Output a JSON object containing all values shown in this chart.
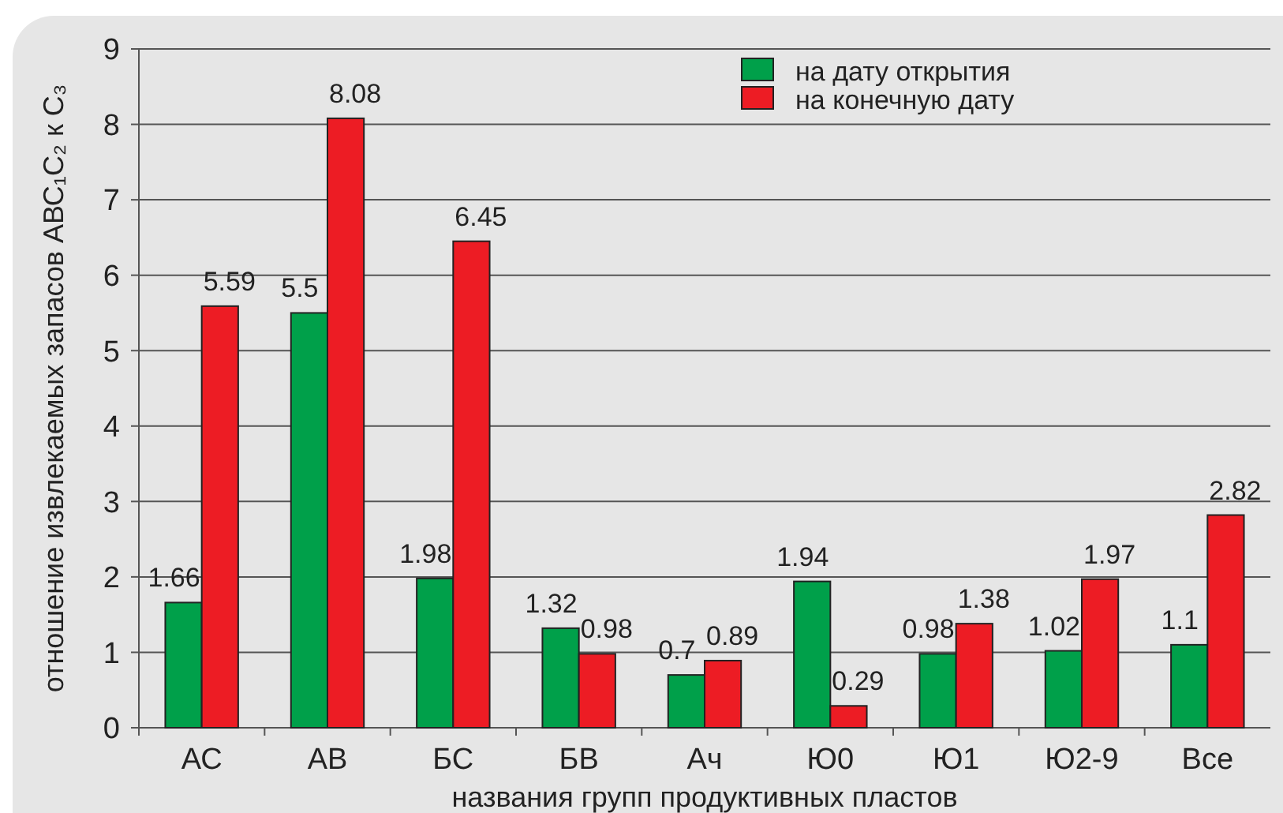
{
  "chart_data": {
    "type": "bar",
    "xlabel": "названия групп продуктивных пластов",
    "ylabel": "отношение извлекаемых запасов АВС₁С₂ к С₃",
    "categories": [
      "АС",
      "АВ",
      "БС",
      "БВ",
      "Ач",
      "Ю0",
      "Ю1",
      "Ю2-9",
      "Все"
    ],
    "series": [
      {
        "name": "на дату открытия",
        "color": "#00a04a",
        "values": [
          1.66,
          5.5,
          1.98,
          1.32,
          0.7,
          1.94,
          0.98,
          1.02,
          1.1
        ]
      },
      {
        "name": "на конечную дату",
        "color": "#ed1c24",
        "values": [
          5.59,
          8.08,
          6.45,
          0.98,
          0.89,
          0.29,
          1.38,
          1.97,
          2.82
        ]
      }
    ],
    "ylim": [
      0,
      9
    ],
    "yticks": [
      0,
      1,
      2,
      3,
      4,
      5,
      6,
      7,
      8,
      9
    ],
    "grid": "y",
    "legend": "top right",
    "data_labels": true
  }
}
